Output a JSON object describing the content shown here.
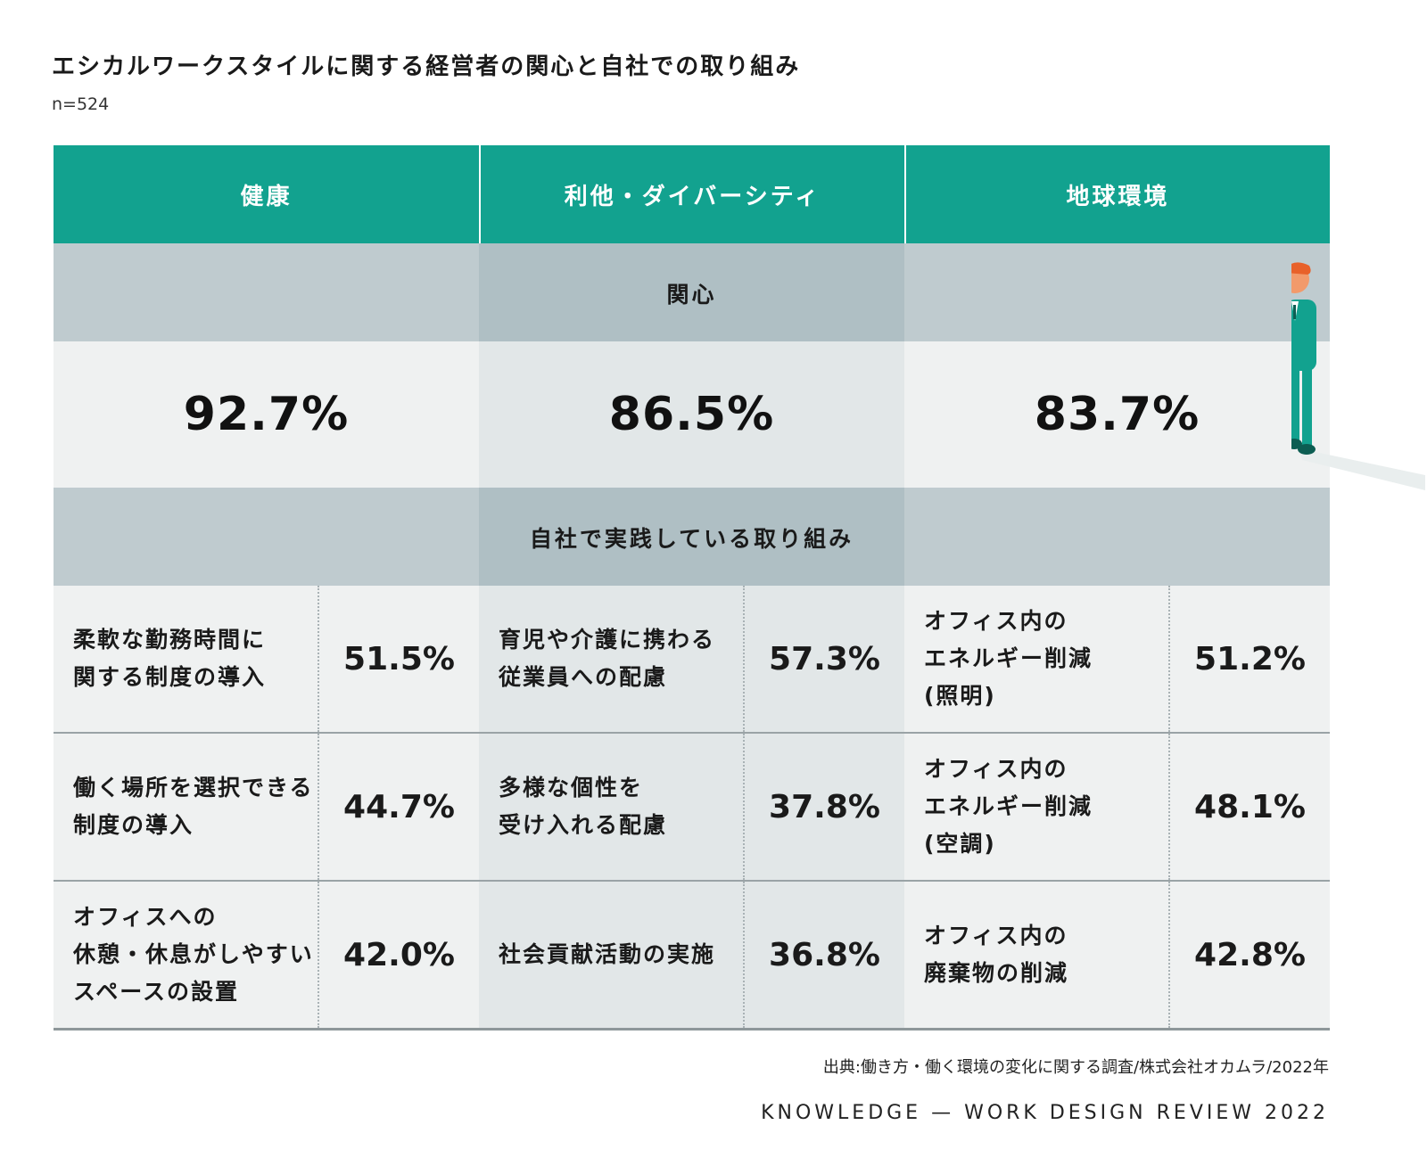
{
  "title": "エシカルワークスタイルに関する経営者の関心と自社での取り組み",
  "sample": "n=524",
  "colors": {
    "header": "#12a28f",
    "band": "#bfcbcf",
    "band_mid": "#afbfc4",
    "cell_light": "#eff1f1",
    "cell_mid": "#e2e7e8"
  },
  "chart_data": {
    "type": "table",
    "title": "エシカルワークスタイルに関する経営者の関心と自社での取り組み",
    "n": "n=524",
    "categories": [
      "健康",
      "利他・ダイバーシティ",
      "地球環境"
    ],
    "interest_label": "関心",
    "interest": [
      "92.7%",
      "86.5%",
      "83.7%"
    ],
    "practice_label": "自社で実践している取り組み",
    "practices": [
      [
        {
          "label": "柔軟な勤務時間に\n関する制度の導入",
          "value": "51.5%"
        },
        {
          "label": "育児や介護に携わる\n従業員への配慮",
          "value": "57.3%"
        },
        {
          "label": "オフィス内の\nエネルギー削減\n(照明)",
          "value": "51.2%"
        }
      ],
      [
        {
          "label": "働く場所を選択できる\n制度の導入",
          "value": "44.7%"
        },
        {
          "label": "多様な個性を\n受け入れる配慮",
          "value": "37.8%"
        },
        {
          "label": "オフィス内の\nエネルギー削減\n(空調)",
          "value": "48.1%"
        }
      ],
      [
        {
          "label": "オフィスへの\n休憩・休息がしやすい\nスペースの設置",
          "value": "42.0%"
        },
        {
          "label": "社会貢献活動の実施",
          "value": "36.8%"
        },
        {
          "label": "オフィス内の\n廃棄物の削減",
          "value": "42.8%"
        }
      ]
    ]
  },
  "source": "出典:働き方・働く環境の変化に関する調査/株式会社オカムラ/2022年",
  "brand": "KNOWLEDGE — WORK DESIGN REVIEW 2022"
}
